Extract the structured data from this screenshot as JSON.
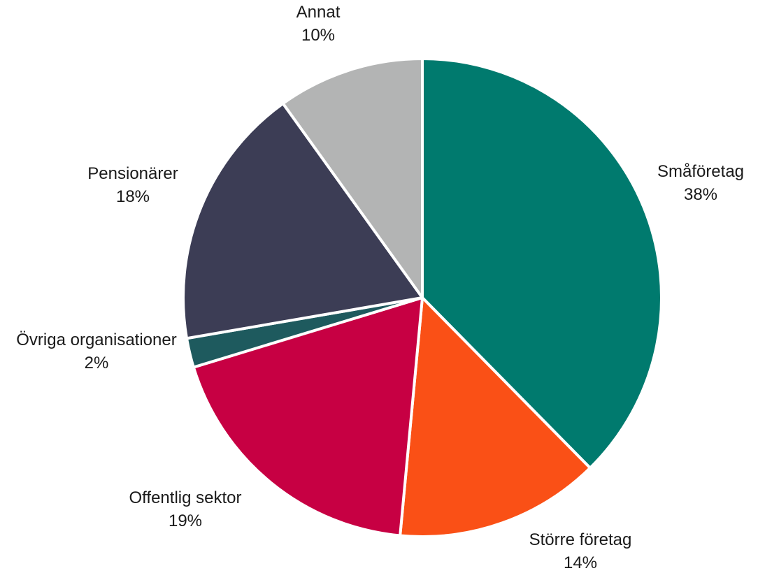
{
  "chart_data": {
    "type": "pie",
    "title": "",
    "slices": [
      {
        "label": "Småföretag",
        "value": 38,
        "value_label": "38%",
        "color": "#007A6E"
      },
      {
        "label": "Större företag",
        "value": 14,
        "value_label": "14%",
        "color": "#FA5016"
      },
      {
        "label": "Offentlig sektor",
        "value": 19,
        "value_label": "19%",
        "color": "#C70043"
      },
      {
        "label": "Övriga organisationer",
        "value": 2,
        "value_label": "2%",
        "color": "#1E5A5E"
      },
      {
        "label": "Pensionärer",
        "value": 18,
        "value_label": "18%",
        "color": "#3C3D55"
      },
      {
        "label": "Annat",
        "value": 10,
        "value_label": "10%",
        "color": "#B3B4B4"
      }
    ],
    "start": "12 o'clock",
    "direction": "clockwise",
    "legend": "none",
    "labels": "outside"
  }
}
